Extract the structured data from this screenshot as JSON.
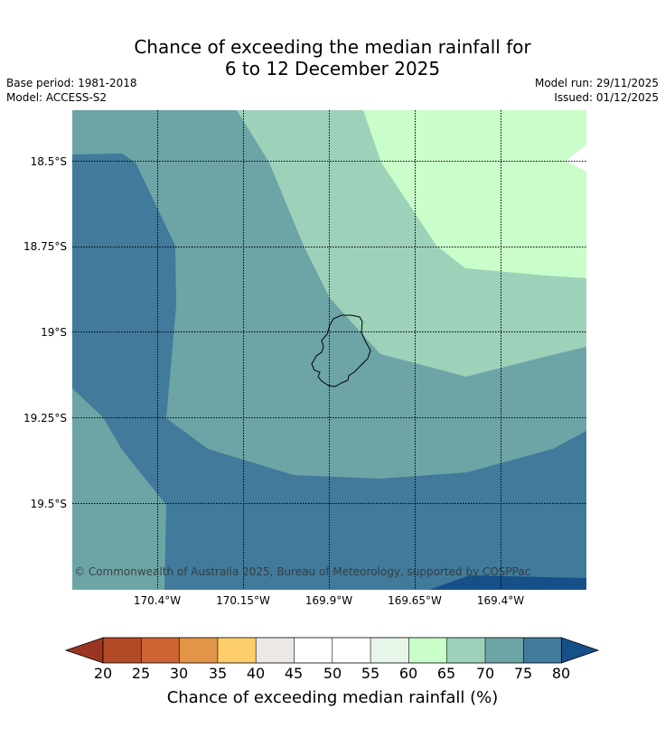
{
  "header": {
    "title_line1": "Chance of exceeding the median rainfall for",
    "title_line2": "6 to 12 December 2025",
    "base_period": "Base period: 1981-2018",
    "model": "Model: ACCESS-S2",
    "model_run": "Model run: 29/11/2025",
    "issued": "Issued: 01/12/2025"
  },
  "map": {
    "latitude_labels": [
      "18.5°S",
      "18.75°S",
      "19°S",
      "19.25°S",
      "19.5°S"
    ],
    "longitude_labels": [
      "170.4°W",
      "170.15°W",
      "169.9°W",
      "169.65°W",
      "169.4°W"
    ],
    "copyright": "© Commonwealth of Australia 2025, Bureau of Meteorology, supported by COSPPac",
    "region_categories": {
      "west_edge": "70-75",
      "western_band": "75-80",
      "central_band": "70-75",
      "northeast_band": "65-70",
      "far_northeast": "60-65",
      "east_tip": "45-50",
      "southeast_corner": ">80"
    }
  },
  "colorbar": {
    "label": "Chance of exceeding median rainfall (%)",
    "ticks": [
      "20",
      "25",
      "30",
      "35",
      "40",
      "45",
      "50",
      "55",
      "60",
      "65",
      "70",
      "75",
      "80"
    ],
    "colors": {
      "below_20": "#9b3522",
      "c20_25": "#b24a27",
      "c25_30": "#cc6434",
      "c30_35": "#e29447",
      "c35_40": "#fdcd6a",
      "c40_45": "#ede8e3",
      "c45_50": "#ffffff",
      "c50_55": "#ffffff",
      "c55_60": "#e8f6e9",
      "c60_65": "#c9fdca",
      "c65_70": "#9dd1b9",
      "c70_75": "#6da4a6",
      "c75_80": "#417a9a",
      "above_80": "#165089"
    }
  }
}
